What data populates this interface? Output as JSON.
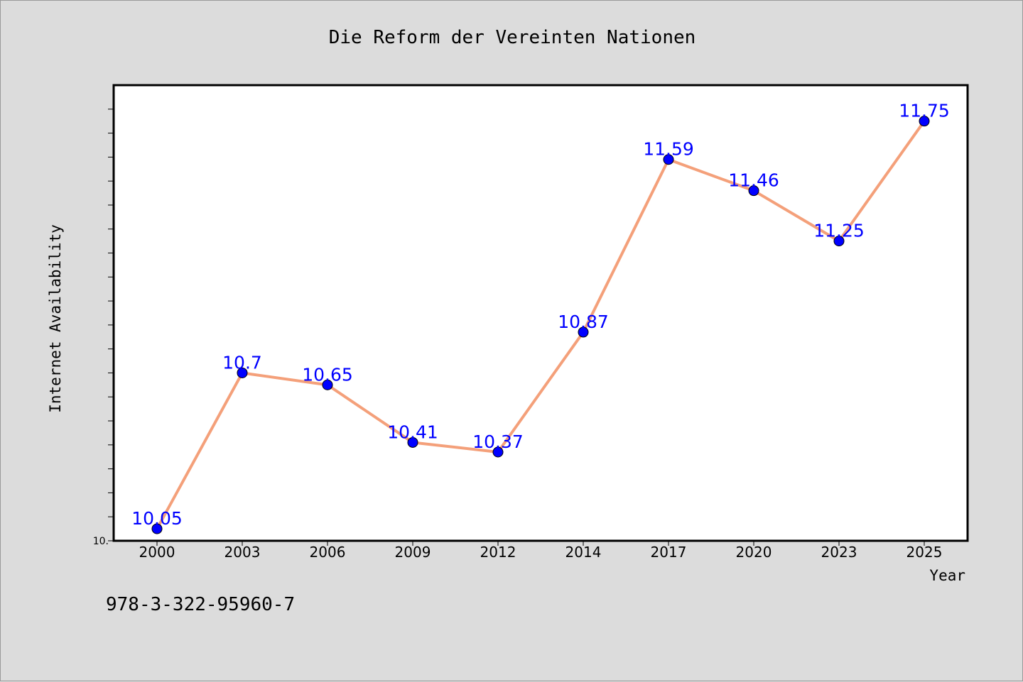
{
  "chart_data": {
    "type": "line",
    "title": "Die Reform der Vereinten Nationen",
    "xlabel": "Year",
    "ylabel": "Internet Availability",
    "categories": [
      "2000",
      "2003",
      "2006",
      "2009",
      "2012",
      "2014",
      "2017",
      "2020",
      "2023",
      "2025"
    ],
    "series": [
      {
        "values": [
          10.05,
          10.7,
          10.65,
          10.41,
          10.37,
          10.87,
          11.59,
          11.46,
          11.25,
          11.75
        ],
        "data_labels": [
          "10.05",
          "10.7",
          "10.65",
          "10.41",
          "10.37",
          "10.87",
          "11.59",
          "11.46",
          "11.25",
          "11.75"
        ]
      }
    ],
    "y_tick_label": "10.",
    "ylim": [
      10.0,
      11.9
    ],
    "y_minor_tick_step": 0.1,
    "grid": false,
    "colors": {
      "line": "#f4a07a",
      "marker": "#0000ff",
      "data_label": "#0000ff",
      "plot_background": "#ffffff",
      "page_background": "#dcdcdc"
    }
  },
  "footer": {
    "isbn": "978-3-322-95960-7"
  }
}
